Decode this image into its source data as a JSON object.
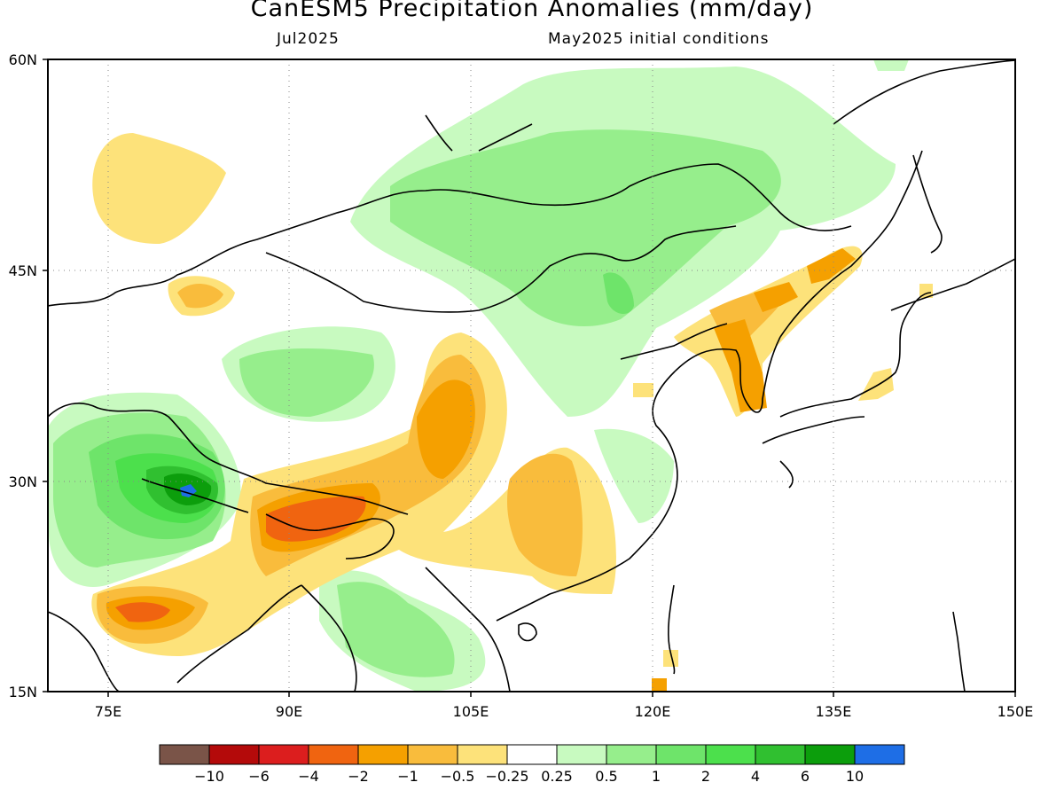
{
  "header": {
    "title": "CanESM5 Precipitation Anomalies (mm/day)",
    "subtitle_left": "Jul2025",
    "subtitle_right": "May2025 initial conditions"
  },
  "map": {
    "lon_range": [
      70,
      150
    ],
    "lat_range": [
      15,
      60
    ],
    "lon_ticks": [
      "75E",
      "90E",
      "105E",
      "120E",
      "135E",
      "150E"
    ],
    "lat_ticks": [
      "15N",
      "30N",
      "45N",
      "60N"
    ],
    "grid": "dotted"
  },
  "colorbar": {
    "colors": [
      "#7a5448",
      "#b40a0a",
      "#dc1e1e",
      "#f06410",
      "#f5a000",
      "#f9bc3c",
      "#fde27a",
      "#ffffff",
      "#c8fac0",
      "#96ee8c",
      "#6ee46a",
      "#4ce04c",
      "#30c030",
      "#0c9e0c",
      "#1e6ee6"
    ],
    "labels": [
      "−10",
      "−6",
      "−4",
      "−2",
      "−1",
      "−0.5",
      "−0.25",
      "0.25",
      "0.5",
      "1",
      "2",
      "4",
      "6",
      "10"
    ]
  }
}
